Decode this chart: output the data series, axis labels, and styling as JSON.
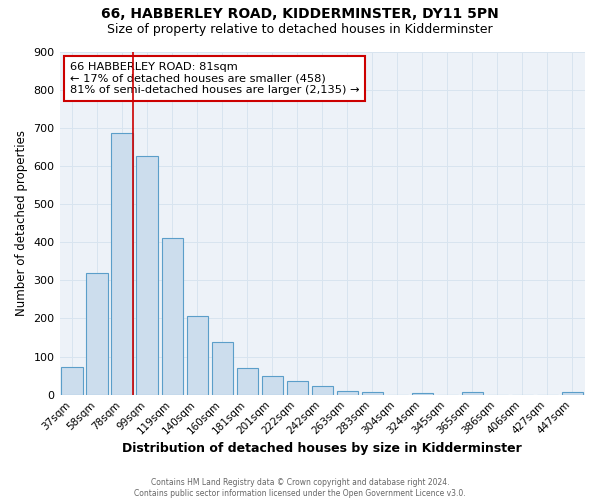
{
  "title": "66, HABBERLEY ROAD, KIDDERMINSTER, DY11 5PN",
  "subtitle": "Size of property relative to detached houses in Kidderminster",
  "xlabel": "Distribution of detached houses by size in Kidderminster",
  "ylabel": "Number of detached properties",
  "bin_labels": [
    "37sqm",
    "58sqm",
    "78sqm",
    "99sqm",
    "119sqm",
    "140sqm",
    "160sqm",
    "181sqm",
    "201sqm",
    "222sqm",
    "242sqm",
    "263sqm",
    "283sqm",
    "304sqm",
    "324sqm",
    "345sqm",
    "365sqm",
    "386sqm",
    "406sqm",
    "427sqm",
    "447sqm"
  ],
  "bin_values": [
    72,
    320,
    685,
    625,
    410,
    207,
    137,
    70,
    48,
    35,
    23,
    11,
    8,
    0,
    5,
    0,
    8,
    0,
    0,
    0,
    8
  ],
  "bar_color": "#ccdded",
  "bar_edge_color": "#5b9ec9",
  "grid_color": "#d8e4ef",
  "vline_x_index": 2,
  "vline_color": "#cc0000",
  "annotation_text": "66 HABBERLEY ROAD: 81sqm\n← 17% of detached houses are smaller (458)\n81% of semi-detached houses are larger (2,135) →",
  "annotation_box_edge": "#cc0000",
  "ylim": [
    0,
    900
  ],
  "yticks": [
    0,
    100,
    200,
    300,
    400,
    500,
    600,
    700,
    800,
    900
  ],
  "footer_line1": "Contains HM Land Registry data © Crown copyright and database right 2024.",
  "footer_line2": "Contains public sector information licensed under the Open Government Licence v3.0.",
  "background_color": "#ffffff",
  "plot_bg_color": "#edf2f8",
  "title_fontsize": 10,
  "subtitle_fontsize": 9
}
